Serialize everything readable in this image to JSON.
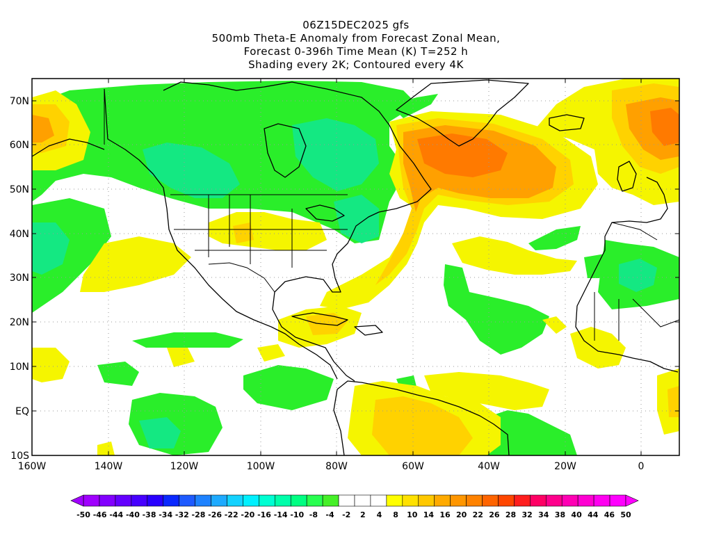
{
  "titles": [
    "06Z15DEC2025 gfs",
    "500mb Theta-E Anomaly from Forecast Zonal Mean,",
    "Forecast 0-396h Time Mean (K) T=252 h",
    "Shading every 2K; Contoured every 4K"
  ],
  "lat_labels": [
    "70N",
    "60N",
    "50N",
    "40N",
    "30N",
    "20N",
    "10N",
    "EQ",
    "10S"
  ],
  "lon_labels": [
    "160W",
    "140W",
    "120W",
    "100W",
    "80W",
    "60W",
    "40W",
    "20W",
    "0"
  ],
  "colorbar": {
    "labels": [
      "-50",
      "-46",
      "-44",
      "-40",
      "-38",
      "-34",
      "-32",
      "-28",
      "-26",
      "-22",
      "-20",
      "-16",
      "-14",
      "-10",
      "-8",
      "-4",
      "-2",
      "2",
      "4",
      "8",
      "10",
      "14",
      "16",
      "20",
      "22",
      "26",
      "28",
      "32",
      "34",
      "38",
      "40",
      "44",
      "46",
      "50"
    ],
    "colors": [
      "#a000ff",
      "#8200ff",
      "#6400ff",
      "#4600ff",
      "#2800ff",
      "#0a28ff",
      "#1e5aff",
      "#1e82ff",
      "#1eaaff",
      "#14d2ff",
      "#00f0ff",
      "#00ffd2",
      "#00ffaa",
      "#00ff82",
      "#28ff50",
      "#46f028",
      "#ffffff",
      "#ffffff",
      "#ffffff",
      "#ffff00",
      "#ffe100",
      "#ffc800",
      "#ffaa00",
      "#ff9600",
      "#ff8200",
      "#ff6400",
      "#ff4600",
      "#ff1e1e",
      "#ff0064",
      "#ff008c",
      "#ff00b4",
      "#ff00d2",
      "#ff00f0",
      "#ff00ff"
    ]
  },
  "palette": {
    "green": "#2aee2a",
    "teal": "#14e882",
    "yellow": "#f5f500",
    "gold": "#ffd200",
    "orange": "#ffa000",
    "dark_orange": "#ff7a00",
    "red_orange": "#ff5a00"
  }
}
